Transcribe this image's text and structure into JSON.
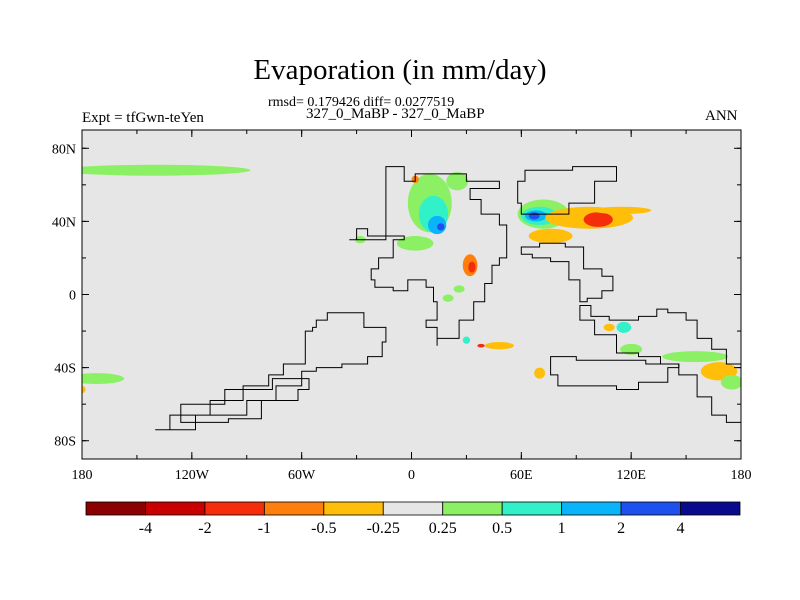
{
  "chart_data": {
    "type": "heatmap",
    "title": "Evaporation (in mm/day)",
    "stats_text": "rmsd= 0.179426 diff= 0.0277519",
    "subtitle": "327_0_MaBP - 327_0_MaBP",
    "left_label": "Expt = tfGwn-teYen",
    "right_label": "ANN",
    "x_ticks": [
      "180",
      "120W",
      "60W",
      "0",
      "60E",
      "120E",
      "180"
    ],
    "y_ticks": [
      "80N",
      "40N",
      "0",
      "40S",
      "80S"
    ],
    "xlim": [
      -180,
      180
    ],
    "ylim": [
      -90,
      90
    ],
    "colorbar": {
      "levels": [
        "-4",
        "-2",
        "-1",
        "-0.5",
        "-0.25",
        "0.25",
        "0.5",
        "1",
        "2",
        "4"
      ],
      "colors": [
        "#8B0000",
        "#C80000",
        "#F52D0A",
        "#FF7F0E",
        "#FFBE0A",
        "#E6E6E6",
        "#8CF064",
        "#32F0C8",
        "#0AB4FA",
        "#1E50F0",
        "#0A0A8C"
      ]
    },
    "field_features": [
      {
        "lon": -140,
        "lat": 68,
        "level": 6,
        "rx": 52,
        "ry": 3
      },
      {
        "lon": -172,
        "lat": -46,
        "level": 6,
        "rx": 15,
        "ry": 3
      },
      {
        "lon": 10,
        "lat": 50,
        "level": 6,
        "rx": 12,
        "ry": 16
      },
      {
        "lon": 12,
        "lat": 44,
        "level": 7,
        "rx": 8,
        "ry": 10
      },
      {
        "lon": 14,
        "lat": 38,
        "level": 8,
        "rx": 5,
        "ry": 5
      },
      {
        "lon": 16,
        "lat": 37,
        "level": 9,
        "rx": 2,
        "ry": 2
      },
      {
        "lon": 2,
        "lat": 28,
        "level": 6,
        "rx": 10,
        "ry": 4
      },
      {
        "lon": 25,
        "lat": 62,
        "level": 6,
        "rx": 6,
        "ry": 5
      },
      {
        "lon": 2,
        "lat": 63,
        "level": 3,
        "rx": 2,
        "ry": 2
      },
      {
        "lon": -28,
        "lat": 30,
        "level": 6,
        "rx": 3,
        "ry": 2
      },
      {
        "lon": 32,
        "lat": 16,
        "level": 3,
        "rx": 4,
        "ry": 6
      },
      {
        "lon": 33,
        "lat": 15,
        "level": 2,
        "rx": 2,
        "ry": 3
      },
      {
        "lon": 72,
        "lat": 44,
        "level": 6,
        "rx": 14,
        "ry": 8
      },
      {
        "lon": 70,
        "lat": 43,
        "level": 7,
        "rx": 10,
        "ry": 5
      },
      {
        "lon": 68,
        "lat": 43,
        "level": 8,
        "rx": 6,
        "ry": 3
      },
      {
        "lon": 67,
        "lat": 43,
        "level": 9,
        "rx": 3,
        "ry": 2
      },
      {
        "lon": 97,
        "lat": 42,
        "level": 4,
        "rx": 24,
        "ry": 6
      },
      {
        "lon": 102,
        "lat": 41,
        "level": 2,
        "rx": 8,
        "ry": 4
      },
      {
        "lon": 76,
        "lat": 32,
        "level": 4,
        "rx": 12,
        "ry": 4
      },
      {
        "lon": 115,
        "lat": 46,
        "level": 4,
        "rx": 16,
        "ry": 2
      },
      {
        "lon": 30,
        "lat": -25,
        "level": 7,
        "rx": 2,
        "ry": 2
      },
      {
        "lon": 48,
        "lat": -28,
        "level": 4,
        "rx": 8,
        "ry": 2
      },
      {
        "lon": 38,
        "lat": -28,
        "level": 2,
        "rx": 2,
        "ry": 1
      },
      {
        "lon": 70,
        "lat": -43,
        "level": 4,
        "rx": 3,
        "ry": 3
      },
      {
        "lon": 116,
        "lat": -18,
        "level": 7,
        "rx": 4,
        "ry": 3
      },
      {
        "lon": 120,
        "lat": -30,
        "level": 6,
        "rx": 6,
        "ry": 3
      },
      {
        "lon": 155,
        "lat": -34,
        "level": 6,
        "rx": 18,
        "ry": 3
      },
      {
        "lon": 168,
        "lat": -42,
        "level": 4,
        "rx": 10,
        "ry": 5
      },
      {
        "lon": 175,
        "lat": -48,
        "level": 6,
        "rx": 6,
        "ry": 4
      },
      {
        "lon": 26,
        "lat": 3,
        "level": 6,
        "rx": 3,
        "ry": 2
      },
      {
        "lon": 20,
        "lat": -2,
        "level": 6,
        "rx": 3,
        "ry": 2
      },
      {
        "lon": 108,
        "lat": -18,
        "level": 4,
        "rx": 3,
        "ry": 2
      },
      {
        "lon": -180,
        "lat": -52,
        "level": 4,
        "rx": 2,
        "ry": 2
      }
    ],
    "continents": [
      [
        [
          -34,
          30
        ],
        [
          -14,
          30
        ],
        [
          -14,
          70
        ],
        [
          -4,
          70
        ],
        [
          -4,
          62
        ],
        [
          2,
          62
        ],
        [
          2,
          66
        ],
        [
          25,
          66
        ],
        [
          30,
          62
        ],
        [
          48,
          62
        ],
        [
          48,
          58
        ],
        [
          38,
          58
        ],
        [
          32,
          52
        ],
        [
          38,
          44
        ],
        [
          48,
          38
        ],
        [
          52,
          20
        ],
        [
          48,
          16
        ],
        [
          44,
          6
        ],
        [
          40,
          -4
        ],
        [
          34,
          -14
        ],
        [
          26,
          -24
        ],
        [
          14,
          -28
        ],
        [
          14,
          -18
        ],
        [
          8,
          -14
        ],
        [
          14,
          -4
        ],
        [
          12,
          4
        ],
        [
          8,
          8
        ],
        [
          -2,
          2
        ],
        [
          -10,
          4
        ],
        [
          -20,
          8
        ],
        [
          -22,
          14
        ],
        [
          -18,
          20
        ],
        [
          -10,
          30
        ],
        [
          -4,
          32
        ],
        [
          -24,
          36
        ],
        [
          -30,
          36
        ],
        [
          -30,
          30
        ],
        [
          -34,
          30
        ]
      ],
      [
        [
          -42,
          -10
        ],
        [
          -30,
          -10
        ],
        [
          -26,
          -18
        ],
        [
          -14,
          -26
        ],
        [
          -16,
          -34
        ],
        [
          -24,
          -38
        ],
        [
          -38,
          -40
        ],
        [
          -52,
          -42
        ],
        [
          -60,
          -50
        ],
        [
          -74,
          -58
        ],
        [
          -90,
          -66
        ],
        [
          -104,
          -66
        ],
        [
          -118,
          -74
        ],
        [
          -140,
          -74
        ],
        [
          -132,
          -66
        ],
        [
          -110,
          -58
        ],
        [
          -92,
          -50
        ],
        [
          -78,
          -44
        ],
        [
          -70,
          -38
        ],
        [
          -58,
          -30
        ],
        [
          -58,
          -20
        ],
        [
          -54,
          -18
        ],
        [
          -52,
          -14
        ],
        [
          -46,
          -10
        ],
        [
          -42,
          -10
        ]
      ],
      [
        [
          -56,
          -46
        ],
        [
          -76,
          -52
        ],
        [
          -102,
          -60
        ],
        [
          -126,
          -70
        ],
        [
          -100,
          -68
        ],
        [
          -82,
          -58
        ],
        [
          -62,
          -52
        ],
        [
          -56,
          -46
        ]
      ],
      [
        [
          62,
          68
        ],
        [
          88,
          70
        ],
        [
          112,
          62
        ],
        [
          100,
          50
        ],
        [
          86,
          44
        ],
        [
          66,
          44
        ],
        [
          60,
          50
        ],
        [
          58,
          62
        ],
        [
          62,
          68
        ]
      ],
      [
        [
          60,
          26
        ],
        [
          70,
          28
        ],
        [
          84,
          26
        ],
        [
          94,
          14
        ],
        [
          104,
          10
        ],
        [
          110,
          2
        ],
        [
          104,
          -2
        ],
        [
          96,
          -4
        ],
        [
          92,
          8
        ],
        [
          86,
          18
        ],
        [
          76,
          20
        ],
        [
          66,
          22
        ],
        [
          60,
          26
        ]
      ],
      [
        [
          92,
          -6
        ],
        [
          98,
          -12
        ],
        [
          108,
          -14
        ],
        [
          124,
          -12
        ],
        [
          134,
          -8
        ],
        [
          140,
          -10
        ],
        [
          150,
          -14
        ],
        [
          156,
          -24
        ],
        [
          164,
          -30
        ],
        [
          172,
          -38
        ],
        [
          180,
          -44
        ],
        [
          180,
          -70
        ],
        [
          172,
          -66
        ],
        [
          164,
          -56
        ],
        [
          156,
          -44
        ],
        [
          146,
          -38
        ],
        [
          136,
          -34
        ],
        [
          124,
          -32
        ],
        [
          112,
          -22
        ],
        [
          100,
          -14
        ],
        [
          92,
          -6
        ]
      ],
      [
        [
          76,
          -34
        ],
        [
          90,
          -36
        ],
        [
          110,
          -36
        ],
        [
          128,
          -38
        ],
        [
          146,
          -40
        ],
        [
          140,
          -48
        ],
        [
          124,
          -52
        ],
        [
          112,
          -50
        ],
        [
          92,
          -50
        ],
        [
          80,
          -44
        ],
        [
          76,
          -34
        ]
      ]
    ]
  }
}
